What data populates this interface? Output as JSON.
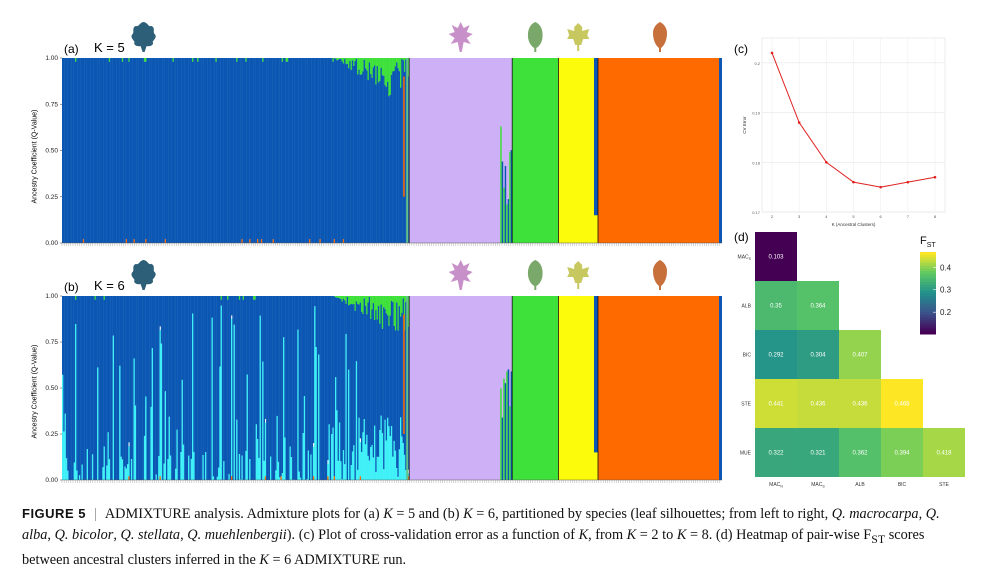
{
  "panels": {
    "a": {
      "label": "(a)",
      "k_label": "K = 5"
    },
    "b": {
      "label": "(b)",
      "k_label": "K = 6"
    },
    "c": {
      "label": "(c)"
    },
    "d": {
      "label": "(d)"
    }
  },
  "admixture": {
    "ylabel": "Ancestry Coefficient (Q-Value)",
    "yticks": [
      "0.00",
      "0.25",
      "0.50",
      "0.75",
      "1.00"
    ],
    "species_order": [
      "Q. macrocarpa",
      "Q. alba",
      "Q. bicolor",
      "Q. stellata",
      "Q. muehlenbergii"
    ],
    "species_fraction": [
      0.52,
      0.15,
      0.07,
      0.06,
      0.05
    ],
    "remaining_fraction_note_none": "",
    "cluster_colors_k5": {
      "MAC": "#0b57b3",
      "ALB": "#cdb0f5",
      "BIC": "#3ee03a",
      "STE": "#fbfb0b",
      "MUE": "#ff6a00"
    },
    "cluster_colors_k6_extra": {
      "MAC2": "#3ff0f7"
    },
    "leaf_colors": [
      "#2d5f78",
      "#c890c8",
      "#7aa86a",
      "#c8c860",
      "#c8703c"
    ]
  },
  "chart_data": [
    {
      "type": "line",
      "panel": "c",
      "title": "",
      "xlabel": "K (Ancestral Clusters)",
      "ylabel": "CV Error",
      "x": [
        2,
        3,
        4,
        5,
        6,
        7,
        8
      ],
      "y": [
        0.202,
        0.188,
        0.18,
        0.176,
        0.175,
        0.176,
        0.177
      ],
      "xlim": [
        2,
        8
      ],
      "ylim": [
        0.17,
        0.205
      ],
      "yticks": [
        0.17,
        0.18,
        0.19,
        0.2
      ],
      "xticks": [
        2,
        3,
        4,
        5,
        6,
        7,
        8
      ],
      "color": "#e02020",
      "grid": true
    },
    {
      "type": "heatmap",
      "panel": "d",
      "title": "",
      "legend_title": "F",
      "legend_title_sub": "ST",
      "legend_ticks": [
        0.2,
        0.3,
        0.4
      ],
      "value_range": [
        0.103,
        0.468
      ],
      "row_labels": [
        {
          "base": "MAC",
          "sub": "S"
        },
        {
          "base": "ALB",
          "sub": ""
        },
        {
          "base": "BIC",
          "sub": ""
        },
        {
          "base": "STE",
          "sub": ""
        },
        {
          "base": "MUE",
          "sub": ""
        }
      ],
      "col_labels": [
        {
          "base": "MAC",
          "sub": "N"
        },
        {
          "base": "MAC",
          "sub": "S"
        },
        {
          "base": "ALB",
          "sub": ""
        },
        {
          "base": "BIC",
          "sub": ""
        },
        {
          "base": "STE",
          "sub": ""
        }
      ],
      "rows": [
        [
          "0.103"
        ],
        [
          "0.35",
          "0.364"
        ],
        [
          "0.292",
          "0.304",
          "0.407"
        ],
        [
          "0.441",
          "0.436",
          "0.436",
          "0.468"
        ],
        [
          "0.322",
          "0.321",
          "0.362",
          "0.394",
          "0.418"
        ]
      ]
    }
  ],
  "caption": {
    "figure_label": "FIGURE 5",
    "separator": "|",
    "text_html": "ADMIXTURE analysis. Admixture plots for (a) <i>K</i> = 5 and (b) <i>K</i> = 6, partitioned by species (leaf silhouettes; from left to right, <i>Q. macrocarpa</i>, <i>Q. alba</i>, <i>Q. bicolor</i>, <i>Q. stellata</i>, <i>Q. muehlenbergii</i>). (c) Plot of cross-validation error as a function of <i>K</i>, from <i>K</i> = 2 to <i>K</i> = 8. (d) Heatmap of pair-wise F<sub>ST</sub> scores between ancestral clusters inferred in the <i>K</i> = 6 ADMIXTURE run."
  }
}
